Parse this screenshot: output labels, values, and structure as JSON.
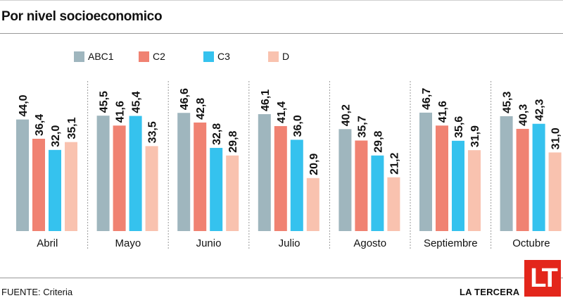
{
  "title": "Por nivel socioeconomico",
  "source": "FUENTE: Criteria",
  "brand": {
    "name": "LA TERCERA",
    "logo_text": "LT",
    "logo_color": "#e3261b"
  },
  "chart_data": {
    "type": "bar",
    "title": "Por nivel socioeconomico",
    "xlabel": "",
    "ylabel": "",
    "ylim": [
      0,
      50
    ],
    "grid": false,
    "legend": "top",
    "categories": [
      "Abril",
      "Mayo",
      "Junio",
      "Julio",
      "Agosto",
      "Septiembre",
      "Octubre"
    ],
    "series": [
      {
        "name": "ABC1",
        "color": "#9fb6be",
        "values": [
          44.0,
          45.5,
          46.6,
          46.1,
          40.2,
          46.7,
          45.3
        ],
        "labels": [
          "44,0",
          "45,5",
          "46,6",
          "46,1",
          "40,2",
          "46,7",
          "45,3"
        ]
      },
      {
        "name": "C2",
        "color": "#f08272",
        "values": [
          36.4,
          41.6,
          42.8,
          41.4,
          35.7,
          41.6,
          40.3
        ],
        "labels": [
          "36,4",
          "41,6",
          "42,8",
          "41,4",
          "35,7",
          "41,6",
          "40,3"
        ]
      },
      {
        "name": "C3",
        "color": "#35c2ee",
        "values": [
          32.0,
          45.4,
          32.8,
          36.0,
          29.8,
          35.6,
          42.3
        ],
        "labels": [
          "32,0",
          "45,4",
          "32,8",
          "36,0",
          "29,8",
          "35,6",
          "42,3"
        ]
      },
      {
        "name": "D",
        "color": "#f9c2af",
        "values": [
          35.1,
          33.5,
          29.8,
          20.9,
          21.2,
          31.9,
          31.0
        ],
        "labels": [
          "35,1",
          "33,5",
          "29,8",
          "20,9",
          "21,2",
          "31,9",
          "31,0"
        ]
      }
    ]
  }
}
